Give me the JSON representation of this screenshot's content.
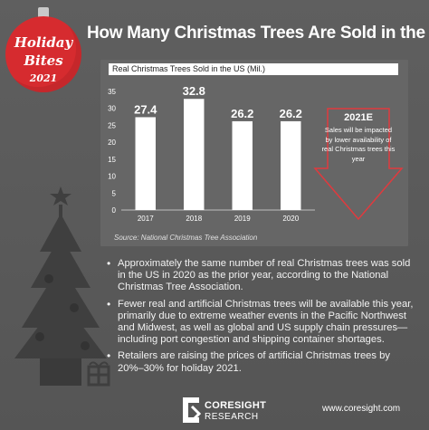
{
  "badge": {
    "line1": "Holiday",
    "line2": "Bites",
    "line3": "2021"
  },
  "header": {
    "title": "How Many Christmas Trees Are Sold in the US?"
  },
  "chart_data": {
    "type": "bar",
    "title": "Real Christmas Trees Sold in the US (Mil.)",
    "categories": [
      "2017",
      "2018",
      "2019",
      "2020"
    ],
    "values": [
      27.4,
      32.8,
      26.2,
      26.2
    ],
    "data_labels": [
      "27.4",
      "32.8",
      "26.2",
      "26.2"
    ],
    "y_ticks": [
      0,
      5,
      10,
      15,
      20,
      25,
      30,
      35
    ],
    "ylim": [
      0,
      35
    ],
    "grid": false,
    "bar_color": "#ffffff",
    "source": "Source: National Christmas Tree Association"
  },
  "callout": {
    "year": "2021E",
    "text": "Sales will be impacted by lower availability of real Christmas trees this year",
    "color": "#e03a3e"
  },
  "bullets": [
    "Approximately the same number of real Christmas trees was sold in the US in 2020 as the prior year, according to the National Christmas Tree Association.",
    "Fewer real and artificial Christmas trees will be available this year, primarily due to extreme weather events in the Pacific Northwest and Midwest, as well as global and US supply chain pressures—including port congestion and shipping container shortages.",
    "Retailers are raising the prices of artificial Christmas trees by 20%–30% for holiday 2021."
  ],
  "footer": {
    "logo_line1": "CORESIGHT",
    "logo_line2": "RESEARCH",
    "url": "www.coresight.com"
  },
  "colors": {
    "background": "#5a5a5a",
    "accent_red": "#d62b2f",
    "tree": "#3f3f3f"
  }
}
